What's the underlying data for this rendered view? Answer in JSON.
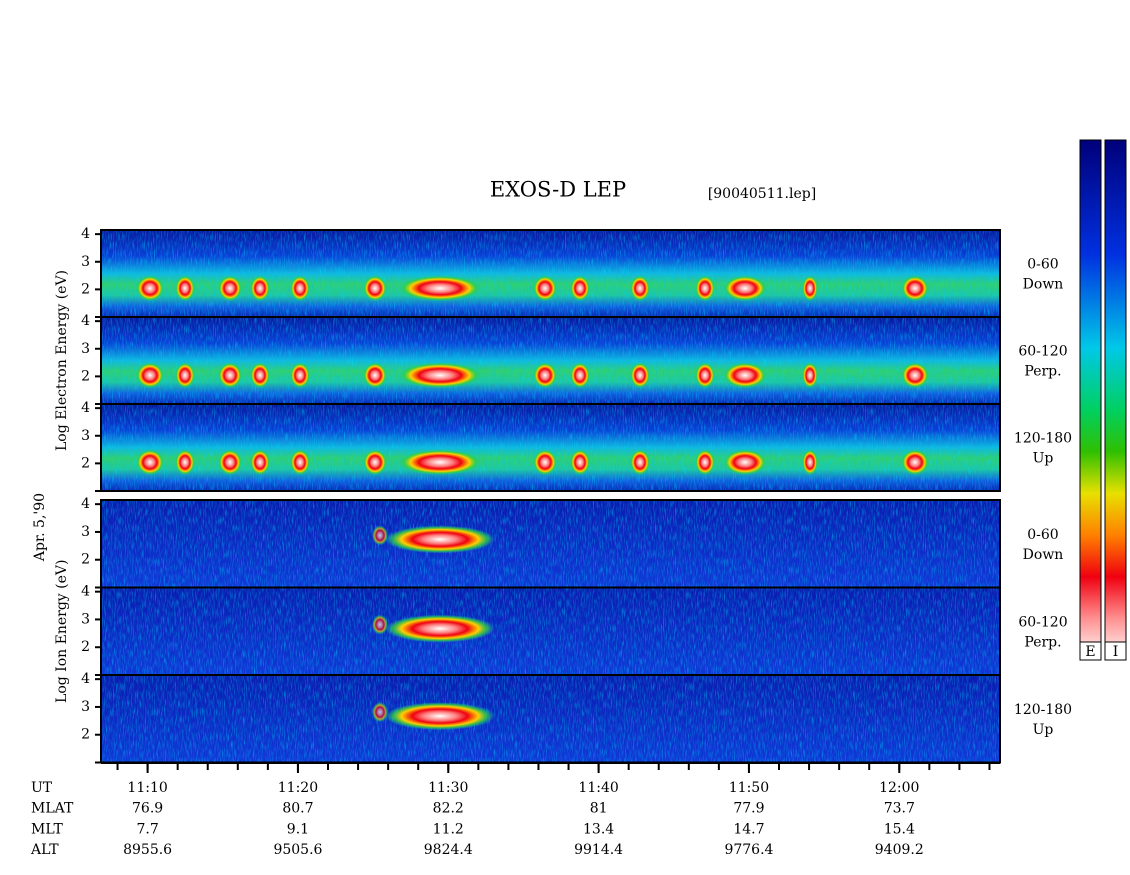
{
  "title": "EXOS-D LEP",
  "file": "[90040511.lep]",
  "date": "Apr. 5,'90",
  "colorbars": [
    "E",
    "I"
  ],
  "x_axis": {
    "xlim": [
      666.9,
      726.7
    ],
    "xticks": [
      {
        "value": 670,
        "label": "11:10"
      },
      {
        "value": 680,
        "label": "11:20"
      },
      {
        "value": 690,
        "label": "11:30"
      },
      {
        "value": 700,
        "label": "11:40"
      },
      {
        "value": 710,
        "label": "11:50"
      },
      {
        "value": 720,
        "label": "12:00"
      }
    ]
  },
  "groups": [
    {
      "ylabel": "Log  Electron  Energy (eV)",
      "ylim": [
        1,
        4.15
      ],
      "yticks": [
        2,
        3,
        4
      ],
      "panels": [
        {
          "label": [
            "0-60",
            "Down"
          ]
        },
        {
          "label": [
            "60-120",
            "Perp."
          ]
        },
        {
          "label": [
            "120-180",
            "Up"
          ]
        }
      ]
    },
    {
      "ylabel": "Log  Ion  Energy (eV)",
      "ylim": [
        1,
        4.15
      ],
      "yticks": [
        2,
        3,
        4
      ],
      "panels": [
        {
          "label": [
            "0-60",
            "Down"
          ]
        },
        {
          "label": [
            "60-120",
            "Perp."
          ]
        },
        {
          "label": [
            "120-180",
            "Up"
          ]
        }
      ]
    }
  ],
  "table": {
    "rows": [
      {
        "label": "UT"
      },
      {
        "label": "MLAT",
        "values": [
          76.9,
          80.7,
          82.2,
          81.0,
          77.9,
          73.7
        ]
      },
      {
        "label": "MLT",
        "values": [
          7.7,
          9.1,
          11.2,
          13.4,
          14.7,
          15.4
        ]
      },
      {
        "label": "ALT",
        "values": [
          8955.6,
          9505.6,
          9824.4,
          9914.4,
          9776.4,
          9409.2
        ]
      }
    ]
  }
}
